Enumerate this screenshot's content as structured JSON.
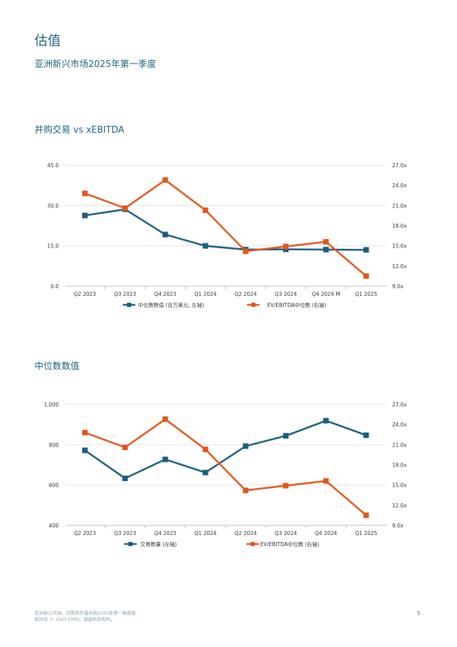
{
  "page": {
    "title": "估值",
    "subtitle": "亚洲新兴市场2025年第一季度",
    "footer_line1": "亚洲新兴市场、印度和东盟并购2025年第一季度版",
    "footer_line2": "权所有 © 2025 EMIS。保留所有权利。",
    "page_number": "5"
  },
  "colors": {
    "teal": "#1b5e7e",
    "orange": "#e2571d",
    "grid": "#e3e3e3"
  },
  "chart_data": [
    {
      "type": "line",
      "title": "并购交易 vs xEBITDA",
      "categories": [
        "Q2 2023",
        "Q3 2023",
        "Q4 2023",
        "Q1 2024",
        "Q2 2024",
        "Q3 2024",
        "Q4 2024 M",
        "Q1 2025"
      ],
      "left_axis": {
        "ticks": [
          "45.0",
          "30.0",
          "15.0",
          "0.0"
        ],
        "range": [
          0,
          45
        ]
      },
      "right_axis": {
        "ticks": [
          "27.0x",
          "24.0x",
          "21.0x",
          "18.0x",
          "15.0x",
          "12.0x",
          "9.0x"
        ],
        "range": [
          9,
          27
        ]
      },
      "series": [
        {
          "name": "中位数数值 (百万美元, 左轴)",
          "axis": "left",
          "color": "#1b5e7e",
          "values": [
            26.3,
            28.6,
            19.2,
            15.0,
            13.6,
            13.7,
            13.6,
            13.5
          ]
        },
        {
          "name": "EV/EBITDA中位数 (右轴)",
          "axis": "right",
          "color": "#e2571d",
          "values": [
            22.8,
            20.6,
            24.8,
            20.3,
            14.2,
            14.9,
            15.6,
            10.5
          ]
        }
      ]
    },
    {
      "type": "line",
      "title": "中位数数值",
      "categories": [
        "Q2 2023",
        "Q3 2023",
        "Q4 2023",
        "Q1 2024",
        "Q2 2024",
        "Q3 2024",
        "Q4 2024",
        "Q1 2025"
      ],
      "left_axis": {
        "ticks": [
          "1,000",
          "800",
          "600",
          "400"
        ],
        "range": [
          400,
          1000
        ]
      },
      "right_axis": {
        "ticks": [
          "27.0x",
          "24.0x",
          "21.0x",
          "18.0x",
          "15.0x",
          "12.0x",
          "9.0x"
        ],
        "range": [
          9,
          27
        ]
      },
      "series": [
        {
          "name": "交易数量 (左轴)",
          "axis": "left",
          "color": "#1b5e7e",
          "values": [
            772,
            633,
            727,
            662,
            793,
            844,
            919,
            847
          ]
        },
        {
          "name": "EV/EBITDA中位数 (右轴)",
          "axis": "right",
          "color": "#e2571d",
          "values": [
            22.8,
            20.6,
            24.8,
            20.3,
            14.2,
            14.9,
            15.6,
            10.5
          ]
        }
      ]
    }
  ]
}
